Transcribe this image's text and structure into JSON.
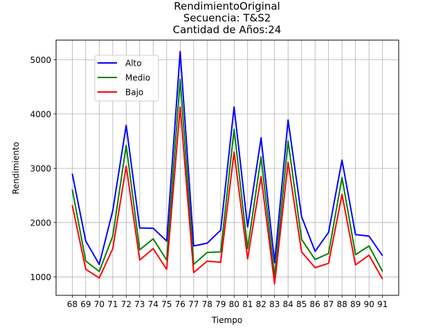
{
  "chart_data": {
    "type": "line",
    "title_lines": [
      "RendimientoOriginal",
      "Secuencia: T&S2",
      "Cantidad de Años:24"
    ],
    "xlabel": "Tiempo",
    "ylabel": "Rendimiento",
    "x": [
      68,
      69,
      70,
      71,
      72,
      73,
      74,
      75,
      76,
      77,
      78,
      79,
      80,
      81,
      82,
      83,
      84,
      85,
      86,
      87,
      88,
      89,
      90,
      91
    ],
    "xlim": [
      66.8,
      92.2
    ],
    "ylim": [
      660,
      5360
    ],
    "yticks": [
      1000,
      2000,
      3000,
      4000,
      5000
    ],
    "grid": true,
    "legend_position": "upper-left",
    "series": [
      {
        "name": "Alto",
        "color": "#0000ff",
        "values": [
          2900,
          1660,
          1230,
          2220,
          3790,
          1900,
          1895,
          1660,
          5150,
          1570,
          1620,
          1860,
          4130,
          1920,
          3560,
          1260,
          3890,
          2110,
          1470,
          1820,
          3150,
          1780,
          1750,
          1390
        ]
      },
      {
        "name": "Medio",
        "color": "#008000",
        "values": [
          2610,
          1290,
          1100,
          1750,
          3420,
          1500,
          1700,
          1310,
          4640,
          1230,
          1450,
          1460,
          3720,
          1520,
          3210,
          1000,
          3500,
          1690,
          1320,
          1430,
          2830,
          1410,
          1570,
          1100
        ]
      },
      {
        "name": "Bajo",
        "color": "#ff0000",
        "values": [
          2320,
          1140,
          980,
          1520,
          3040,
          1310,
          1520,
          1140,
          4130,
          1080,
          1290,
          1270,
          3300,
          1330,
          2850,
          870,
          3110,
          1460,
          1170,
          1250,
          2520,
          1220,
          1400,
          960
        ]
      }
    ]
  }
}
